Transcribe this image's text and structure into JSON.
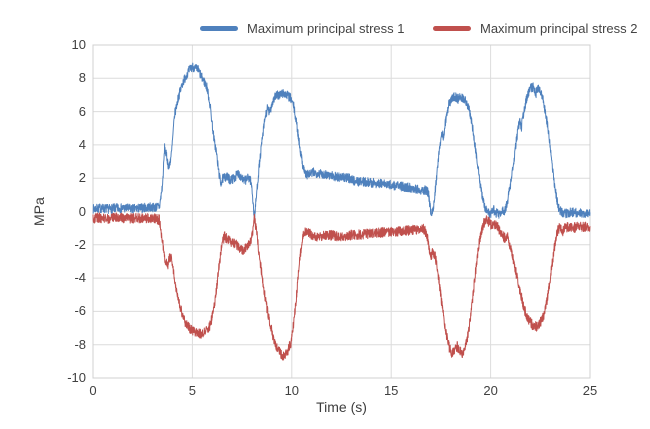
{
  "chart_data": {
    "type": "line",
    "title": "",
    "xlabel": "Time (s)",
    "ylabel": "MPa",
    "xlim": [
      0,
      25
    ],
    "ylim": [
      -10,
      10
    ],
    "xticks": [
      0,
      5,
      10,
      15,
      20,
      25
    ],
    "yticks": [
      -10,
      -8,
      -6,
      -4,
      -2,
      0,
      2,
      4,
      6,
      8,
      10
    ],
    "grid": true,
    "legend_position": "top",
    "grid_color": "#dcdcdc",
    "border_color": "#d0d0d0",
    "noise_seed": 7,
    "sample_step": 0.01,
    "series": [
      {
        "name": "Maximum principal stress 1",
        "color": "#4f81bd",
        "noise_amplitude": 0.28,
        "envelope": [
          [
            0,
            0.15
          ],
          [
            0.4,
            0.2
          ],
          [
            0.8,
            0.15
          ],
          [
            1.2,
            0.2
          ],
          [
            1.6,
            0.2
          ],
          [
            2.0,
            0.15
          ],
          [
            2.4,
            0.2
          ],
          [
            2.8,
            0.25
          ],
          [
            3.1,
            0.25
          ],
          [
            3.35,
            0.3
          ],
          [
            3.5,
            1.6
          ],
          [
            3.6,
            3.8
          ],
          [
            3.72,
            3.2
          ],
          [
            3.82,
            2.6
          ],
          [
            3.95,
            3.5
          ],
          [
            4.1,
            5.8
          ],
          [
            4.3,
            6.9
          ],
          [
            4.5,
            7.7
          ],
          [
            4.7,
            8.2
          ],
          [
            4.85,
            8.5
          ],
          [
            5.0,
            8.7
          ],
          [
            5.15,
            8.6
          ],
          [
            5.3,
            8.5
          ],
          [
            5.45,
            8.1
          ],
          [
            5.6,
            7.8
          ],
          [
            5.75,
            7.4
          ],
          [
            5.9,
            6.3
          ],
          [
            6.0,
            5.2
          ],
          [
            6.1,
            4.2
          ],
          [
            6.2,
            3.6
          ],
          [
            6.3,
            2.6
          ],
          [
            6.42,
            1.7
          ],
          [
            6.55,
            2.0
          ],
          [
            6.7,
            2.1
          ],
          [
            6.9,
            1.9
          ],
          [
            7.1,
            2.0
          ],
          [
            7.3,
            2.3
          ],
          [
            7.45,
            2.1
          ],
          [
            7.6,
            1.8
          ],
          [
            7.75,
            2.0
          ],
          [
            7.9,
            2.0
          ],
          [
            8.0,
            1.4
          ],
          [
            8.12,
            -0.45
          ],
          [
            8.22,
            0.9
          ],
          [
            8.35,
            2.6
          ],
          [
            8.5,
            4.2
          ],
          [
            8.65,
            5.6
          ],
          [
            8.78,
            6.2
          ],
          [
            8.88,
            5.9
          ],
          [
            9.0,
            6.5
          ],
          [
            9.15,
            6.9
          ],
          [
            9.35,
            7.0
          ],
          [
            9.55,
            7.1
          ],
          [
            9.75,
            7.0
          ],
          [
            9.95,
            6.8
          ],
          [
            10.1,
            6.3
          ],
          [
            10.25,
            5.2
          ],
          [
            10.4,
            3.9
          ],
          [
            10.55,
            2.8
          ],
          [
            10.7,
            2.2
          ],
          [
            10.9,
            2.25
          ],
          [
            11.1,
            2.35
          ],
          [
            11.3,
            2.3
          ],
          [
            11.6,
            2.25
          ],
          [
            11.9,
            2.2
          ],
          [
            12.2,
            2.1
          ],
          [
            12.5,
            2.05
          ],
          [
            12.8,
            2.0
          ],
          [
            13.0,
            1.95
          ],
          [
            13.15,
            1.85
          ],
          [
            13.4,
            1.8
          ],
          [
            13.7,
            1.78
          ],
          [
            14.0,
            1.72
          ],
          [
            14.3,
            1.7
          ],
          [
            14.6,
            1.65
          ],
          [
            14.9,
            1.6
          ],
          [
            15.2,
            1.55
          ],
          [
            15.5,
            1.5
          ],
          [
            15.8,
            1.45
          ],
          [
            16.1,
            1.4
          ],
          [
            16.4,
            1.33
          ],
          [
            16.7,
            1.28
          ],
          [
            16.88,
            1.1
          ],
          [
            17.02,
            -0.4
          ],
          [
            17.15,
            0.5
          ],
          [
            17.3,
            2.2
          ],
          [
            17.45,
            4.0
          ],
          [
            17.55,
            4.8
          ],
          [
            17.63,
            4.4
          ],
          [
            17.78,
            5.9
          ],
          [
            17.92,
            6.5
          ],
          [
            18.05,
            6.8
          ],
          [
            18.2,
            6.9
          ],
          [
            18.35,
            6.75
          ],
          [
            18.5,
            6.9
          ],
          [
            18.65,
            6.8
          ],
          [
            18.8,
            6.55
          ],
          [
            18.95,
            6.0
          ],
          [
            19.1,
            5.0
          ],
          [
            19.25,
            3.7
          ],
          [
            19.4,
            2.3
          ],
          [
            19.55,
            1.0
          ],
          [
            19.7,
            0.3
          ],
          [
            19.85,
            0.0
          ],
          [
            20.0,
            -0.2
          ],
          [
            20.15,
            0.1
          ],
          [
            20.3,
            -0.1
          ],
          [
            20.45,
            -0.2
          ],
          [
            20.6,
            0.1
          ],
          [
            20.72,
            0.0
          ],
          [
            20.85,
            0.6
          ],
          [
            21.0,
            1.6
          ],
          [
            21.15,
            2.9
          ],
          [
            21.3,
            4.3
          ],
          [
            21.45,
            5.4
          ],
          [
            21.55,
            5.1
          ],
          [
            21.7,
            6.2
          ],
          [
            21.85,
            7.0
          ],
          [
            22.0,
            7.4
          ],
          [
            22.15,
            7.5
          ],
          [
            22.27,
            7.0
          ],
          [
            22.38,
            7.5
          ],
          [
            22.5,
            7.3
          ],
          [
            22.65,
            6.7
          ],
          [
            22.8,
            5.7
          ],
          [
            22.95,
            4.4
          ],
          [
            23.1,
            2.8
          ],
          [
            23.25,
            1.3
          ],
          [
            23.4,
            0.3
          ],
          [
            23.55,
            -0.05
          ],
          [
            23.8,
            -0.1
          ],
          [
            24.1,
            -0.05
          ],
          [
            24.4,
            -0.1
          ],
          [
            24.7,
            -0.08
          ],
          [
            25,
            -0.1
          ]
        ]
      },
      {
        "name": "Maximum principal stress 2",
        "color": "#c0504d",
        "noise_amplitude": 0.3,
        "envelope": [
          [
            0,
            -0.4
          ],
          [
            0.4,
            -0.38
          ],
          [
            0.8,
            -0.42
          ],
          [
            1.2,
            -0.36
          ],
          [
            1.6,
            -0.4
          ],
          [
            2.0,
            -0.42
          ],
          [
            2.4,
            -0.38
          ],
          [
            2.8,
            -0.4
          ],
          [
            3.1,
            -0.42
          ],
          [
            3.35,
            -0.5
          ],
          [
            3.5,
            -1.8
          ],
          [
            3.62,
            -2.9
          ],
          [
            3.74,
            -3.3
          ],
          [
            3.88,
            -2.7
          ],
          [
            4.0,
            -3.1
          ],
          [
            4.15,
            -4.4
          ],
          [
            4.35,
            -5.6
          ],
          [
            4.55,
            -6.4
          ],
          [
            4.75,
            -6.9
          ],
          [
            4.95,
            -7.1
          ],
          [
            5.15,
            -7.25
          ],
          [
            5.35,
            -7.35
          ],
          [
            5.55,
            -7.3
          ],
          [
            5.75,
            -7.1
          ],
          [
            5.9,
            -6.8
          ],
          [
            6.05,
            -6.0
          ],
          [
            6.2,
            -4.8
          ],
          [
            6.35,
            -3.2
          ],
          [
            6.5,
            -1.9
          ],
          [
            6.62,
            -1.5
          ],
          [
            6.8,
            -1.7
          ],
          [
            7.0,
            -1.9
          ],
          [
            7.2,
            -2.0
          ],
          [
            7.4,
            -2.2
          ],
          [
            7.55,
            -2.3
          ],
          [
            7.7,
            -2.15
          ],
          [
            7.85,
            -1.9
          ],
          [
            8.0,
            -1.5
          ],
          [
            8.13,
            -0.35
          ],
          [
            8.25,
            -1.4
          ],
          [
            8.4,
            -2.9
          ],
          [
            8.55,
            -4.3
          ],
          [
            8.7,
            -5.5
          ],
          [
            8.9,
            -6.7
          ],
          [
            9.1,
            -7.7
          ],
          [
            9.3,
            -8.3
          ],
          [
            9.5,
            -8.6
          ],
          [
            9.65,
            -8.7
          ],
          [
            9.8,
            -8.35
          ],
          [
            9.95,
            -7.9
          ],
          [
            10.1,
            -6.7
          ],
          [
            10.25,
            -4.9
          ],
          [
            10.4,
            -2.9
          ],
          [
            10.55,
            -1.6
          ],
          [
            10.68,
            -1.1
          ],
          [
            10.85,
            -1.3
          ],
          [
            11.05,
            -1.4
          ],
          [
            11.3,
            -1.5
          ],
          [
            11.6,
            -1.48
          ],
          [
            11.9,
            -1.42
          ],
          [
            12.2,
            -1.45
          ],
          [
            12.5,
            -1.5
          ],
          [
            12.8,
            -1.45
          ],
          [
            13.1,
            -1.4
          ],
          [
            13.4,
            -1.38
          ],
          [
            13.7,
            -1.35
          ],
          [
            14.0,
            -1.3
          ],
          [
            14.3,
            -1.28
          ],
          [
            14.6,
            -1.25
          ],
          [
            14.9,
            -1.22
          ],
          [
            15.2,
            -1.2
          ],
          [
            15.5,
            -1.18
          ],
          [
            15.8,
            -1.15
          ],
          [
            16.1,
            -1.1
          ],
          [
            16.4,
            -1.08
          ],
          [
            16.65,
            -1.05
          ],
          [
            16.8,
            -1.4
          ],
          [
            16.95,
            -2.7
          ],
          [
            17.08,
            -2.5
          ],
          [
            17.2,
            -2.55
          ],
          [
            17.32,
            -3.4
          ],
          [
            17.45,
            -4.6
          ],
          [
            17.6,
            -6.0
          ],
          [
            17.75,
            -7.3
          ],
          [
            17.9,
            -8.1
          ],
          [
            18.05,
            -8.55
          ],
          [
            18.2,
            -8.3
          ],
          [
            18.32,
            -8.1
          ],
          [
            18.45,
            -8.4
          ],
          [
            18.6,
            -8.5
          ],
          [
            18.75,
            -8.1
          ],
          [
            18.9,
            -7.2
          ],
          [
            19.05,
            -5.8
          ],
          [
            19.2,
            -4.1
          ],
          [
            19.35,
            -2.5
          ],
          [
            19.5,
            -1.3
          ],
          [
            19.65,
            -0.7
          ],
          [
            19.8,
            -0.5
          ],
          [
            19.95,
            -0.7
          ],
          [
            20.1,
            -0.85
          ],
          [
            20.25,
            -0.8
          ],
          [
            20.4,
            -1.0
          ],
          [
            20.55,
            -1.3
          ],
          [
            20.7,
            -1.6
          ],
          [
            20.85,
            -1.5
          ],
          [
            21.0,
            -2.1
          ],
          [
            21.15,
            -2.9
          ],
          [
            21.3,
            -3.8
          ],
          [
            21.5,
            -4.9
          ],
          [
            21.7,
            -5.9
          ],
          [
            21.9,
            -6.5
          ],
          [
            22.1,
            -6.8
          ],
          [
            22.3,
            -6.9
          ],
          [
            22.45,
            -6.75
          ],
          [
            22.6,
            -6.5
          ],
          [
            22.75,
            -5.9
          ],
          [
            22.9,
            -4.9
          ],
          [
            23.05,
            -3.6
          ],
          [
            23.2,
            -2.2
          ],
          [
            23.35,
            -1.2
          ],
          [
            23.5,
            -0.9
          ],
          [
            23.62,
            -1.3
          ],
          [
            23.75,
            -0.9
          ],
          [
            24.0,
            -1.0
          ],
          [
            24.3,
            -0.95
          ],
          [
            24.6,
            -0.92
          ],
          [
            25,
            -0.9
          ]
        ]
      }
    ]
  }
}
